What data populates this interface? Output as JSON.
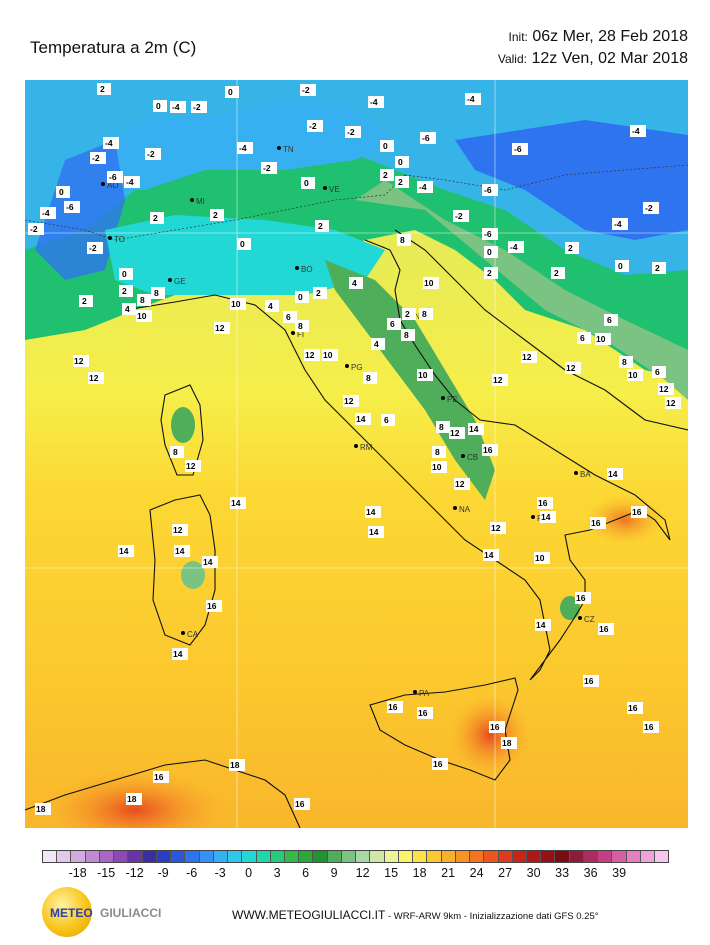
{
  "title": "Temperatura a 2m   (C)",
  "init": "Init: 06z Mer, 28 Feb 2018",
  "init_label": "Init:",
  "init_value": "06z Mer, 28 Feb 2018",
  "valid_label": "Valid:",
  "valid_value": "12z Ven, 02 Mar 2018",
  "legend": {
    "ticks": [
      "-18",
      "-15",
      "-12",
      "-9",
      "-6",
      "-3",
      "0",
      "3",
      "6",
      "9",
      "12",
      "15",
      "18",
      "21",
      "24",
      "27",
      "30",
      "33",
      "36",
      "39"
    ],
    "colors": [
      "#f3e6f5",
      "#e4c8ec",
      "#d2aae0",
      "#bf8bd3",
      "#a966c4",
      "#8f49b4",
      "#6a34a8",
      "#3b2ea0",
      "#2a3fc2",
      "#2b57de",
      "#2f74ef",
      "#3592f4",
      "#37b0f2",
      "#2fc8ea",
      "#22d8d4",
      "#1fd8a8",
      "#23cc78",
      "#35bb45",
      "#2aa936",
      "#1f9430",
      "#4fae5a",
      "#7ac383",
      "#a7d8a6",
      "#cfe8a8",
      "#eef29a",
      "#fdf36a",
      "#fde24a",
      "#fdc933",
      "#fbb02b",
      "#f89424",
      "#f3761f",
      "#ec561c",
      "#df3a1b",
      "#c92419",
      "#b11618",
      "#951116",
      "#7a0d14",
      "#8e1b3a",
      "#ab2c5e",
      "#c43f85",
      "#d65da6",
      "#e57fc3",
      "#f0a2da",
      "#f8c6ec"
    ]
  },
  "cities": [
    "AO",
    "TO",
    "MI",
    "TN",
    "VE",
    "BO",
    "GE",
    "FI",
    "AN",
    "PG",
    "PE",
    "RM",
    "CB",
    "NA",
    "BA",
    "PZ",
    "CZ",
    "CA",
    "PA"
  ],
  "values": [
    "2",
    "0",
    "-4",
    "-2",
    "-6",
    "4",
    "6",
    "8",
    "10",
    "12",
    "14",
    "16",
    "18"
  ],
  "footer": {
    "site": "WWW.METEOGIULIACCI.IT",
    "info": " - WRF-ARW 9km - Inizializzazione dati GFS 0.25°"
  },
  "logo": {
    "meteo": "METEO",
    "giuliacci": "GIULIACCI"
  }
}
